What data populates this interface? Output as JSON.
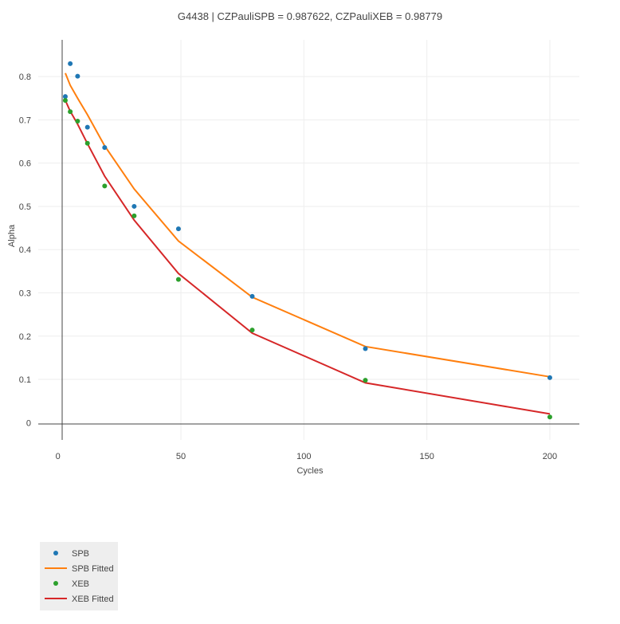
{
  "chart_data": {
    "type": "scatter",
    "title": "G4438 | CZPauliSPB = 0.987622, CZPauliXEB = 0.98779",
    "xlabel": "Cycles",
    "ylabel": "Alpha",
    "xlim": [
      -8,
      212
    ],
    "ylim": [
      -0.04,
      0.885
    ],
    "x_ticks": [
      0,
      50,
      100,
      150,
      200
    ],
    "x_tick_labels": [
      "0",
      "50",
      "100",
      "150",
      "200"
    ],
    "y_ticks": [
      0,
      0.1,
      0.2,
      0.3,
      0.4,
      0.5,
      0.6,
      0.7,
      0.8
    ],
    "y_tick_labels": [
      "0",
      "0.1",
      "0.2",
      "0.3",
      "0.4",
      "0.5",
      "0.6",
      "0.7",
      "0.8"
    ],
    "grid": true,
    "legend_position": "bottom-left",
    "series": [
      {
        "name": "SPB",
        "mode": "markers",
        "color": "#1f77b4",
        "x": [
          3,
          5,
          8,
          12,
          19,
          31,
          49,
          79,
          125,
          200
        ],
        "y": [
          0.754,
          0.83,
          0.801,
          0.683,
          0.636,
          0.5,
          0.448,
          0.292,
          0.171,
          0.104
        ]
      },
      {
        "name": "SPB Fitted",
        "mode": "lines",
        "color": "#ff7f0e",
        "x": [
          3,
          5,
          8,
          12,
          19,
          31,
          49,
          79,
          125,
          200
        ],
        "y": [
          0.808,
          0.78,
          0.75,
          0.712,
          0.64,
          0.54,
          0.42,
          0.29,
          0.176,
          0.106
        ]
      },
      {
        "name": "XEB",
        "mode": "markers",
        "color": "#2ca02c",
        "x": [
          3,
          5,
          8,
          12,
          19,
          31,
          49,
          79,
          125,
          200
        ],
        "y": [
          0.745,
          0.719,
          0.697,
          0.646,
          0.547,
          0.478,
          0.331,
          0.214,
          0.098,
          0.013
        ]
      },
      {
        "name": "XEB Fitted",
        "mode": "lines",
        "color": "#d62728",
        "x": [
          3,
          5,
          8,
          12,
          19,
          31,
          49,
          79,
          125,
          200
        ],
        "y": [
          0.745,
          0.72,
          0.69,
          0.645,
          0.57,
          0.468,
          0.345,
          0.207,
          0.092,
          0.02
        ]
      }
    ]
  }
}
